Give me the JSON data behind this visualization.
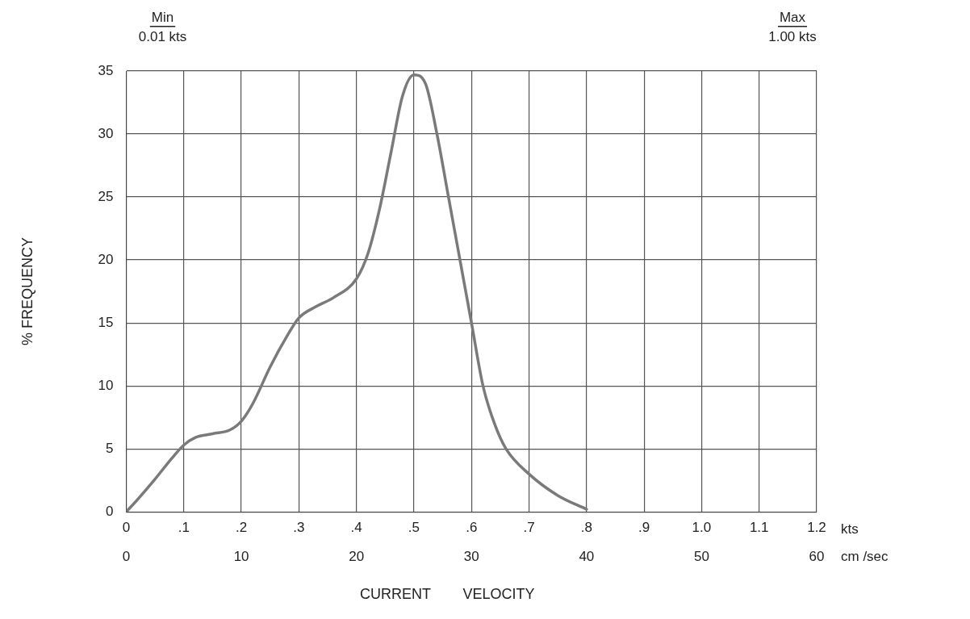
{
  "chart_data": {
    "type": "line",
    "xlabel": "CURRENT VELOCITY",
    "ylabel": "% FREQUENCY",
    "x2label": "cm /sec",
    "annotations": [
      "kts",
      "Min",
      "0.01 kts",
      "Max",
      "1.00 kts"
    ],
    "x": [
      0,
      0.02,
      0.05,
      0.08,
      0.1,
      0.12,
      0.15,
      0.18,
      0.2,
      0.22,
      0.25,
      0.28,
      0.3,
      0.33,
      0.36,
      0.4,
      0.42,
      0.44,
      0.46,
      0.48,
      0.5,
      0.52,
      0.54,
      0.56,
      0.58,
      0.6,
      0.62,
      0.64,
      0.66,
      0.7,
      0.75,
      0.8
    ],
    "series": [
      {
        "color": "#7a7a7a",
        "values": [
          0,
          1,
          2.6,
          4.3,
          5.3,
          5.9,
          6.2,
          6.5,
          7.2,
          8.6,
          11.5,
          14,
          15.4,
          16.3,
          17,
          18.5,
          20.5,
          24,
          28.5,
          33,
          34.7,
          34,
          30,
          25,
          20,
          15,
          10,
          7,
          5,
          3,
          1.3,
          0.2
        ]
      }
    ],
    "xlim": [
      0,
      1.2
    ],
    "xticks": [
      0,
      {
        "value": 0.1,
        "label": ".1"
      },
      {
        "value": 0.2,
        "label": ".2"
      },
      {
        "value": 0.3,
        "label": ".3"
      },
      {
        "value": 0.4,
        "label": ".4"
      },
      {
        "value": 0.5,
        "label": ".5"
      },
      {
        "value": 0.6,
        "label": ".6"
      },
      {
        "value": 0.7,
        "label": ".7"
      },
      {
        "value": 0.8,
        "label": ".8"
      },
      {
        "value": 0.9,
        "label": ".9"
      },
      {
        "value": 1,
        "label": "1.0"
      },
      1.1,
      1.2
    ],
    "x2lim": [
      0,
      60
    ],
    "x2ticks": [
      0,
      10,
      20,
      30,
      40,
      50,
      60
    ],
    "ylim": [
      0,
      35
    ],
    "yticks": [
      0,
      5,
      10,
      15,
      20,
      25,
      30,
      35
    ],
    "grid": true,
    "legend": false,
    "marker": "none",
    "line_style": "solid"
  }
}
